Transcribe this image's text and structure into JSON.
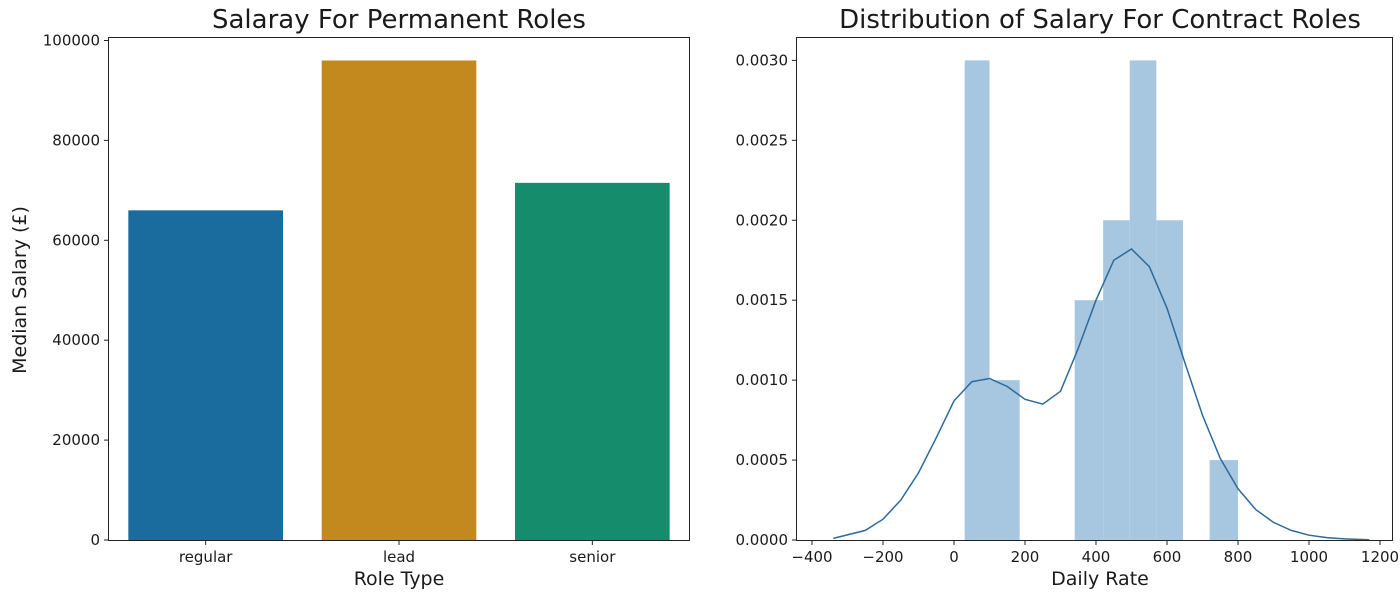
{
  "chart_data": [
    {
      "type": "bar",
      "title": "Salaray For Permanent Roles",
      "xlabel": "Role Type",
      "ylabel": "Median Salary (£)",
      "categories": [
        "regular",
        "lead",
        "senior"
      ],
      "values": [
        66000,
        96000,
        71500
      ],
      "colors": [
        "#1a6b9e",
        "#c4891e",
        "#158d6c"
      ],
      "ylim": [
        0,
        100000
      ],
      "yticks": [
        0,
        20000,
        40000,
        60000,
        80000,
        100000
      ],
      "grid": false
    },
    {
      "type": "histogram",
      "title": "Distribution of Salary For Contract Roles",
      "xlabel": "Daily Rate",
      "ylabel": "",
      "xlim": [
        -420,
        1200
      ],
      "ylim": [
        0,
        0.0031
      ],
      "xticks": [
        -400,
        -200,
        0,
        200,
        400,
        600,
        800,
        1000,
        1200
      ],
      "xtick_labels": [
        "−400",
        "−200",
        "0",
        "200",
        "400",
        "600",
        "800",
        "1000",
        "1200"
      ],
      "yticks": [
        0,
        0.0005,
        0.001,
        0.0015,
        0.002,
        0.0025,
        0.003
      ],
      "ytick_labels": [
        "0.0000",
        "0.0005",
        "0.0010",
        "0.0015",
        "0.0020",
        "0.0025",
        "0.0030"
      ],
      "bins": [
        {
          "x0": 30,
          "x1": 100,
          "density": 0.003
        },
        {
          "x0": 100,
          "x1": 185,
          "density": 0.001
        },
        {
          "x0": 185,
          "x1": 340,
          "density": 0
        },
        {
          "x0": 340,
          "x1": 420,
          "density": 0.0015
        },
        {
          "x0": 420,
          "x1": 495,
          "density": 0.002
        },
        {
          "x0": 495,
          "x1": 570,
          "density": 0.003
        },
        {
          "x0": 570,
          "x1": 645,
          "density": 0.002
        },
        {
          "x0": 645,
          "x1": 720,
          "density": 0
        },
        {
          "x0": 720,
          "x1": 800,
          "density": 0.0005
        }
      ],
      "bar_color": "#a7c7e0",
      "kde": {
        "x": [
          -340,
          -250,
          -200,
          -150,
          -100,
          -50,
          0,
          50,
          100,
          150,
          200,
          250,
          300,
          350,
          400,
          450,
          500,
          550,
          600,
          650,
          700,
          750,
          800,
          850,
          900,
          950,
          1000,
          1050,
          1100,
          1170
        ],
        "y": [
          1e-05,
          6e-05,
          0.00013,
          0.00025,
          0.00042,
          0.00064,
          0.00087,
          0.00099,
          0.00101,
          0.00096,
          0.00088,
          0.00085,
          0.00093,
          0.0012,
          0.0015,
          0.00175,
          0.00182,
          0.00171,
          0.00145,
          0.00111,
          0.00078,
          0.00051,
          0.00032,
          0.00019,
          0.00011,
          6e-05,
          3e-05,
          1.5e-05,
          7e-06,
          2e-06
        ],
        "color": "#2c6a9c"
      },
      "grid": false
    }
  ]
}
